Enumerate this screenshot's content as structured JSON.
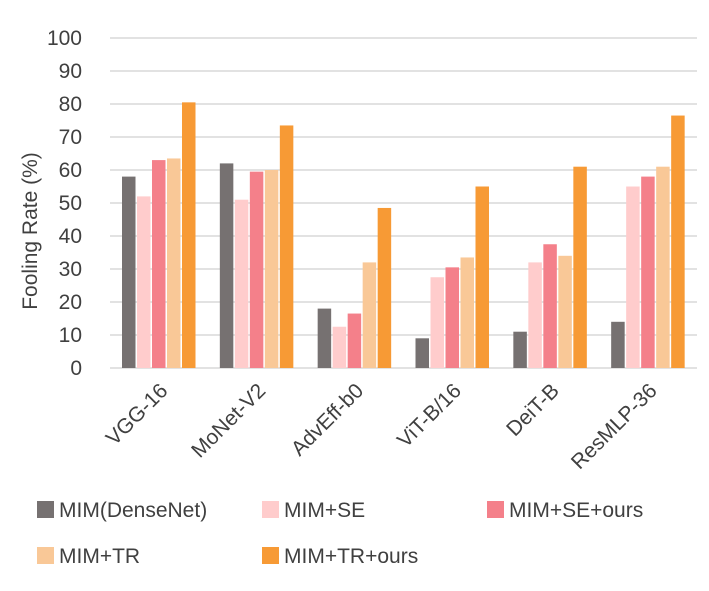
{
  "chart_data": {
    "type": "bar",
    "ylabel": "Fooling Rate (%)",
    "xlabel": "",
    "ylim": [
      0,
      100
    ],
    "yticks": [
      0,
      10,
      20,
      30,
      40,
      50,
      60,
      70,
      80,
      90,
      100
    ],
    "grid": true,
    "legend_position": "bottom",
    "categories": [
      "VGG-16",
      "MoNet-V2",
      "AdvEff-b0",
      "ViT-B/16",
      "DeiT-B",
      "ResMLP-36"
    ],
    "series": [
      {
        "name": "MIM(DenseNet)",
        "color": "#767171",
        "values": [
          58,
          62,
          18,
          9,
          11,
          14
        ]
      },
      {
        "name": "MIM+SE",
        "color": "#ffcccc",
        "values": [
          52,
          51,
          12.5,
          27.5,
          32,
          55
        ]
      },
      {
        "name": "MIM+SE+ours",
        "color": "#f4808a",
        "values": [
          63,
          59.5,
          16.5,
          30.5,
          37.5,
          58
        ]
      },
      {
        "name": "MIM+TR",
        "color": "#f9c897",
        "values": [
          63.5,
          60,
          32,
          33.5,
          34,
          61
        ]
      },
      {
        "name": "MIM+TR+ours",
        "color": "#f79a35",
        "values": [
          80.5,
          73.5,
          48.5,
          55,
          61,
          76.5
        ]
      }
    ]
  }
}
